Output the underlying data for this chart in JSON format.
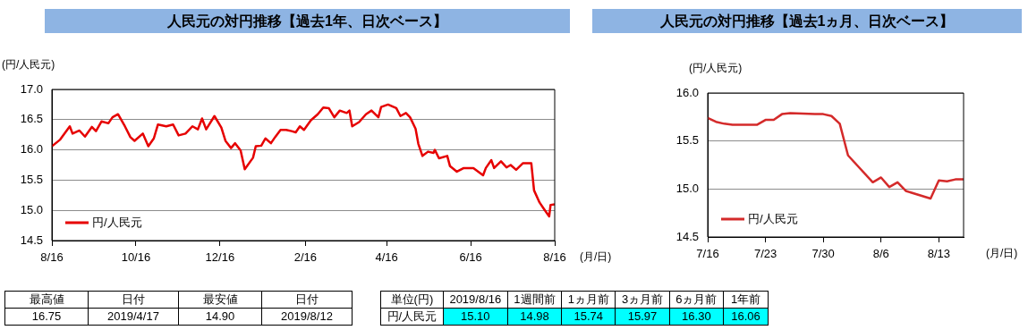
{
  "chart_data": [
    {
      "type": "line",
      "title": "人民元の対円推移【過去1年、日次ベース】",
      "ylabel": "(円/人民元)",
      "xlabel": "(月/日)",
      "grid": "y",
      "legend": "bottom left",
      "x": [
        "2018-08-16",
        "2018-08-22",
        "2018-08-29",
        "2018-08-31",
        "2018-09-05",
        "2018-09-09",
        "2018-09-14",
        "2018-09-17",
        "2018-09-21",
        "2018-09-26",
        "2018-09-29",
        "2018-10-03",
        "2018-10-08",
        "2018-10-12",
        "2018-10-15",
        "2018-10-21",
        "2018-10-25",
        "2018-10-29",
        "2018-11-01",
        "2018-11-07",
        "2018-11-12",
        "2018-11-16",
        "2018-11-21",
        "2018-11-26",
        "2018-11-30",
        "2018-12-03",
        "2018-12-06",
        "2018-12-12",
        "2018-12-17",
        "2018-12-20",
        "2018-12-24",
        "2018-12-27",
        "2018-12-31",
        "2019-01-03",
        "2019-01-09",
        "2019-01-11",
        "2019-01-15",
        "2019-01-18",
        "2019-01-22",
        "2019-01-25",
        "2019-01-29",
        "2019-02-02",
        "2019-02-06",
        "2019-02-09",
        "2019-02-12",
        "2019-02-15",
        "2019-02-20",
        "2019-02-25",
        "2019-03-01",
        "2019-03-05",
        "2019-03-09",
        "2019-03-13",
        "2019-03-18",
        "2019-03-20",
        "2019-03-22",
        "2019-03-27",
        "2019-04-01",
        "2019-04-05",
        "2019-04-10",
        "2019-04-12",
        "2019-04-17",
        "2019-04-23",
        "2019-04-26",
        "2019-04-30",
        "2019-05-03",
        "2019-05-07",
        "2019-05-09",
        "2019-05-12",
        "2019-05-16",
        "2019-05-20",
        "2019-05-21",
        "2019-05-24",
        "2019-05-30",
        "2019-06-01",
        "2019-06-06",
        "2019-06-11",
        "2019-06-18",
        "2019-06-25",
        "2019-06-27",
        "2019-07-01",
        "2019-07-03",
        "2019-07-08",
        "2019-07-12",
        "2019-07-15",
        "2019-07-19",
        "2019-07-24",
        "2019-07-30",
        "2019-08-01",
        "2019-08-05",
        "2019-08-08",
        "2019-08-12",
        "2019-08-13",
        "2019-08-16"
      ],
      "series": [
        {
          "name": "円/人民元",
          "color": "#e60000",
          "values": [
            16.06,
            16.17,
            16.39,
            16.27,
            16.32,
            16.22,
            16.38,
            16.31,
            16.47,
            16.44,
            16.54,
            16.59,
            16.39,
            16.21,
            16.15,
            16.27,
            16.06,
            16.19,
            16.42,
            16.39,
            16.42,
            16.24,
            16.27,
            16.39,
            16.34,
            16.52,
            16.34,
            16.56,
            16.37,
            16.15,
            16.03,
            16.11,
            15.99,
            15.68,
            15.87,
            16.06,
            16.07,
            16.19,
            16.11,
            16.21,
            16.33,
            16.33,
            16.31,
            16.29,
            16.39,
            16.33,
            16.49,
            16.59,
            16.7,
            16.69,
            16.54,
            16.65,
            16.61,
            16.65,
            16.39,
            16.46,
            16.59,
            16.65,
            16.54,
            16.71,
            16.75,
            16.69,
            16.56,
            16.61,
            16.54,
            16.35,
            16.1,
            15.9,
            15.97,
            15.95,
            16.0,
            15.86,
            15.9,
            15.73,
            15.64,
            15.7,
            15.7,
            15.58,
            15.7,
            15.83,
            15.7,
            15.81,
            15.71,
            15.75,
            15.67,
            15.78,
            15.78,
            15.33,
            15.13,
            15.03,
            14.9,
            15.09,
            15.1
          ]
        }
      ],
      "xlim": [
        "2018-08-16",
        "2019-08-16"
      ],
      "xticks": [
        {
          "value": "2018-08-16",
          "label": "8/16"
        },
        {
          "value": "2018-10-16",
          "label": "10/16"
        },
        {
          "value": "2018-12-16",
          "label": "12/16"
        },
        {
          "value": "2019-02-16",
          "label": "2/16"
        },
        {
          "value": "2019-04-16",
          "label": "4/16"
        },
        {
          "value": "2019-06-16",
          "label": "6/16"
        },
        {
          "value": "2019-08-16",
          "label": "8/16"
        }
      ],
      "ylim": [
        14.5,
        17.0
      ],
      "yticks": [
        {
          "value": 14.5,
          "label": "14.5"
        },
        {
          "value": 15,
          "label": "15.0"
        },
        {
          "value": 15.5,
          "label": "15.5"
        },
        {
          "value": 16,
          "label": "16.0"
        },
        {
          "value": 16.5,
          "label": "16.5"
        },
        {
          "value": 17,
          "label": "17.0"
        }
      ],
      "annotations": [
        "最高値",
        "日付",
        "最安値",
        "日付",
        "16.75",
        "2019/4/17",
        "14.90",
        "2019/8/12"
      ]
    },
    {
      "type": "line",
      "title": "人民元の対円推移【過去1ヵ月、日次ベース】",
      "ylabel": "(円/人民元)",
      "xlabel": "(月/日)",
      "grid": "y",
      "legend": "bottom left",
      "x": [
        "2019-07-16",
        "2019-07-17",
        "2019-07-18",
        "2019-07-19",
        "2019-07-22",
        "2019-07-23",
        "2019-07-24",
        "2019-07-25",
        "2019-07-26",
        "2019-07-29",
        "2019-07-30",
        "2019-07-31",
        "2019-08-01",
        "2019-08-02",
        "2019-08-05",
        "2019-08-06",
        "2019-08-07",
        "2019-08-08",
        "2019-08-09",
        "2019-08-12",
        "2019-08-13",
        "2019-08-14",
        "2019-08-15",
        "2019-08-16"
      ],
      "series": [
        {
          "name": "円/人民元",
          "color": "#d42a2a",
          "values": [
            15.74,
            15.7,
            15.68,
            15.67,
            15.67,
            15.72,
            15.72,
            15.78,
            15.79,
            15.78,
            15.78,
            15.76,
            15.68,
            15.35,
            15.07,
            15.12,
            15.02,
            15.07,
            14.98,
            14.9,
            15.09,
            15.08,
            15.1,
            15.1
          ]
        }
      ],
      "xlim": [
        "2019-07-16",
        "2019-08-16"
      ],
      "xticks": [
        {
          "value": "2019-07-16",
          "label": "7/16"
        },
        {
          "value": "2019-07-23",
          "label": "7/23"
        },
        {
          "value": "2019-07-30",
          "label": "7/30"
        },
        {
          "value": "2019-08-06",
          "label": "8/6"
        },
        {
          "value": "2019-08-13",
          "label": "8/13"
        }
      ],
      "ylim": [
        14.5,
        16.0
      ],
      "yticks": [
        {
          "value": 14.5,
          "label": "14.5"
        },
        {
          "value": 15,
          "label": "15.0"
        },
        {
          "value": 15.5,
          "label": "15.5"
        },
        {
          "value": 16,
          "label": "16.0"
        }
      ],
      "annotations": [
        "単位(円)",
        "2019/8/16",
        "1週間前",
        "1ヵ月前",
        "3ヵ月前",
        "6ヵ月前",
        "1年前",
        "円/人民元",
        "15.10",
        "14.98",
        "15.74",
        "15.97",
        "16.30",
        "16.06"
      ]
    }
  ]
}
